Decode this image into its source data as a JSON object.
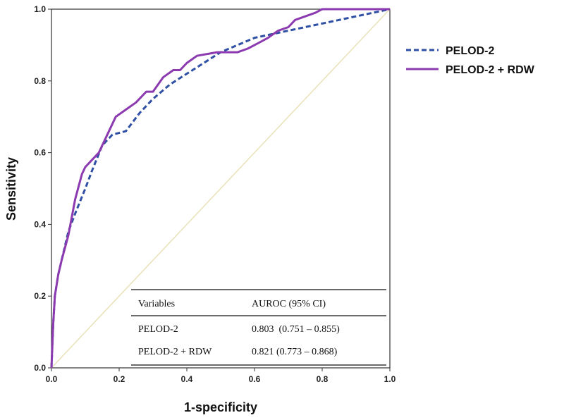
{
  "chart_data": {
    "type": "line",
    "title": "",
    "xlabel": "1-specificity",
    "ylabel": "Sensitivity",
    "xlim": [
      0,
      1
    ],
    "ylim": [
      0,
      1
    ],
    "x_ticks": [
      "0.0",
      "0.2",
      "0.4",
      "0.6",
      "0.8",
      "1.0"
    ],
    "y_ticks": [
      "0.0",
      "0.2",
      "0.4",
      "0.6",
      "0.8",
      "1.0"
    ],
    "legend_position": "right",
    "series": [
      {
        "name": "PELOD-2",
        "color": "#2E4FA3",
        "style": "dashed",
        "x": [
          0,
          0.005,
          0.01,
          0.02,
          0.03,
          0.05,
          0.07,
          0.1,
          0.12,
          0.15,
          0.18,
          0.22,
          0.26,
          0.3,
          0.35,
          0.4,
          0.45,
          0.5,
          0.55,
          0.6,
          0.65,
          0.7,
          0.8,
          0.9,
          1.0
        ],
        "y": [
          0,
          0.12,
          0.2,
          0.26,
          0.3,
          0.38,
          0.43,
          0.5,
          0.55,
          0.62,
          0.65,
          0.66,
          0.71,
          0.75,
          0.79,
          0.82,
          0.85,
          0.88,
          0.9,
          0.92,
          0.93,
          0.94,
          0.96,
          0.98,
          1.0
        ]
      },
      {
        "name": "PELOD-2 + RDW",
        "color": "#8B3BAF",
        "style": "solid",
        "x": [
          0,
          0.005,
          0.01,
          0.02,
          0.03,
          0.05,
          0.07,
          0.09,
          0.1,
          0.12,
          0.14,
          0.16,
          0.19,
          0.22,
          0.25,
          0.28,
          0.3,
          0.33,
          0.36,
          0.38,
          0.4,
          0.43,
          0.46,
          0.49,
          0.52,
          0.55,
          0.58,
          0.61,
          0.64,
          0.67,
          0.7,
          0.72,
          0.75,
          0.78,
          0.8,
          0.9,
          1.0
        ],
        "y": [
          0,
          0.12,
          0.2,
          0.26,
          0.3,
          0.37,
          0.47,
          0.54,
          0.56,
          0.58,
          0.6,
          0.64,
          0.7,
          0.72,
          0.74,
          0.77,
          0.77,
          0.81,
          0.83,
          0.83,
          0.85,
          0.87,
          0.875,
          0.88,
          0.88,
          0.88,
          0.89,
          0.905,
          0.92,
          0.94,
          0.95,
          0.97,
          0.98,
          0.99,
          1.0,
          1.0,
          1.0
        ]
      },
      {
        "name": "Reference line",
        "color": "#E8E2B8",
        "style": "solid",
        "x": [
          0,
          1
        ],
        "y": [
          0,
          1
        ]
      }
    ],
    "table": {
      "headers": [
        "Variables",
        "AUROC (95% CI)"
      ],
      "rows": [
        [
          "PELOD-2",
          "0.803  (0.751 – 0.855)"
        ],
        [
          "PELOD-2 + RDW",
          "0.821 (0.773 – 0.868)"
        ]
      ]
    }
  }
}
